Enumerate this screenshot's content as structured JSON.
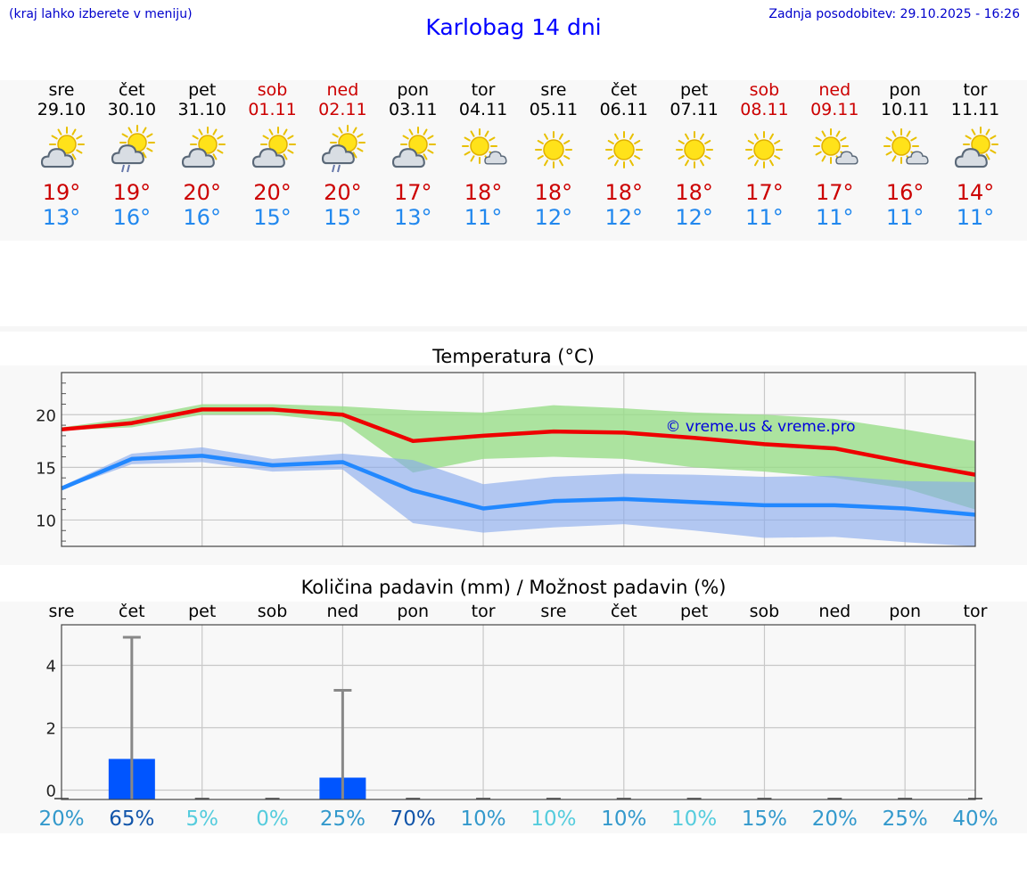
{
  "header": {
    "hint": "(kraj lahko izberete v meniju)",
    "title": "Karlobag 14 dni",
    "updated": "Zadnja posodobitev: 29.10.2025 - 16:26"
  },
  "days": [
    {
      "name": "sre",
      "date": "29.10",
      "weekend": false,
      "icon": "partly-cloudy-icon",
      "max": "19°",
      "min": "13°"
    },
    {
      "name": "čet",
      "date": "30.10",
      "weekend": false,
      "icon": "cloudy-rain-icon",
      "max": "19°",
      "min": "16°"
    },
    {
      "name": "pet",
      "date": "31.10",
      "weekend": false,
      "icon": "partly-cloudy-icon",
      "max": "20°",
      "min": "16°"
    },
    {
      "name": "sob",
      "date": "01.11",
      "weekend": true,
      "icon": "partly-cloudy-icon",
      "max": "20°",
      "min": "15°"
    },
    {
      "name": "ned",
      "date": "02.11",
      "weekend": true,
      "icon": "cloudy-rain-icon",
      "max": "20°",
      "min": "15°"
    },
    {
      "name": "pon",
      "date": "03.11",
      "weekend": false,
      "icon": "partly-cloudy-icon",
      "max": "17°",
      "min": "13°"
    },
    {
      "name": "tor",
      "date": "04.11",
      "weekend": false,
      "icon": "mostly-sunny-icon",
      "max": "18°",
      "min": "11°"
    },
    {
      "name": "sre",
      "date": "05.11",
      "weekend": false,
      "icon": "sunny-icon",
      "max": "18°",
      "min": "12°"
    },
    {
      "name": "čet",
      "date": "06.11",
      "weekend": false,
      "icon": "sunny-icon",
      "max": "18°",
      "min": "12°"
    },
    {
      "name": "pet",
      "date": "07.11",
      "weekend": false,
      "icon": "sunny-icon",
      "max": "18°",
      "min": "12°"
    },
    {
      "name": "sob",
      "date": "08.11",
      "weekend": true,
      "icon": "sunny-icon",
      "max": "17°",
      "min": "11°"
    },
    {
      "name": "ned",
      "date": "09.11",
      "weekend": true,
      "icon": "mostly-sunny-icon",
      "max": "17°",
      "min": "11°"
    },
    {
      "name": "pon",
      "date": "10.11",
      "weekend": false,
      "icon": "mostly-sunny-icon",
      "max": "16°",
      "min": "11°"
    },
    {
      "name": "tor",
      "date": "11.11",
      "weekend": false,
      "icon": "partly-cloudy-icon",
      "max": "14°",
      "min": "11°"
    }
  ],
  "colors": {
    "max_line": "#ee0000",
    "max_band": "#99dd88",
    "min_line": "#2288ff",
    "min_band": "#88aaee",
    "bar": "#0055ff",
    "whisker": "#888888",
    "watermark": "#0000dd"
  },
  "chart_data": [
    {
      "type": "line",
      "title": "Temperatura (°C)",
      "x": [
        0,
        1,
        2,
        3,
        4,
        5,
        6,
        7,
        8,
        9,
        10,
        11,
        12,
        13
      ],
      "ylim": [
        7.5,
        24
      ],
      "yticks": [
        10,
        15,
        20
      ],
      "watermark": "© vreme.us & vreme.pro",
      "series": [
        {
          "name": "max",
          "values": [
            18.6,
            19.2,
            20.5,
            20.5,
            20.0,
            17.5,
            18.0,
            18.4,
            18.3,
            17.8,
            17.2,
            16.8,
            15.5,
            14.3
          ],
          "band_low": [
            18.5,
            18.8,
            20.0,
            20.0,
            19.3,
            14.5,
            15.8,
            16.0,
            15.8,
            15.0,
            14.6,
            14.0,
            13.0,
            11.0
          ],
          "band_high": [
            18.8,
            19.7,
            21.0,
            21.0,
            20.8,
            20.4,
            20.2,
            20.9,
            20.6,
            20.2,
            20.0,
            19.6,
            18.6,
            17.5
          ]
        },
        {
          "name": "min",
          "values": [
            13.0,
            15.8,
            16.1,
            15.2,
            15.5,
            12.8,
            11.1,
            11.8,
            12.0,
            11.7,
            11.4,
            11.4,
            11.1,
            10.5
          ],
          "band_low": [
            12.9,
            15.3,
            15.5,
            14.6,
            14.8,
            9.7,
            8.8,
            9.3,
            9.6,
            9.0,
            8.3,
            8.4,
            7.9,
            7.5
          ],
          "band_high": [
            13.2,
            16.3,
            16.9,
            15.8,
            16.3,
            15.7,
            13.4,
            14.1,
            14.4,
            14.3,
            14.1,
            14.2,
            13.7,
            13.6
          ]
        }
      ]
    },
    {
      "type": "bar",
      "title": "Količina padavin (mm) / Možnost padavin (%)",
      "categories": [
        "sre",
        "čet",
        "pet",
        "sob",
        "ned",
        "pon",
        "tor",
        "sre",
        "čet",
        "pet",
        "sob",
        "ned",
        "pon",
        "tor"
      ],
      "values": [
        0,
        1.0,
        0,
        0,
        0.4,
        0,
        0,
        0,
        0,
        0,
        0,
        0,
        0,
        0
      ],
      "max_values": [
        0,
        4.9,
        0,
        0,
        3.2,
        0,
        0,
        0,
        0,
        0,
        0,
        0,
        0,
        0
      ],
      "ylim": [
        -0.3,
        5.3
      ],
      "yticks": [
        0,
        2,
        4
      ],
      "chance": [
        "20%",
        "65%",
        "5%",
        "0%",
        "25%",
        "70%",
        "10%",
        "10%",
        "10%",
        "10%",
        "15%",
        "20%",
        "25%",
        "40%"
      ],
      "chance_colors": [
        "#3399cc",
        "#1155aa",
        "#55ccdd",
        "#55ccdd",
        "#3399cc",
        "#1155aa",
        "#3399cc",
        "#55ccdd",
        "#3399cc",
        "#55ccdd",
        "#3399cc",
        "#3399cc",
        "#3399cc",
        "#3399cc"
      ]
    }
  ]
}
